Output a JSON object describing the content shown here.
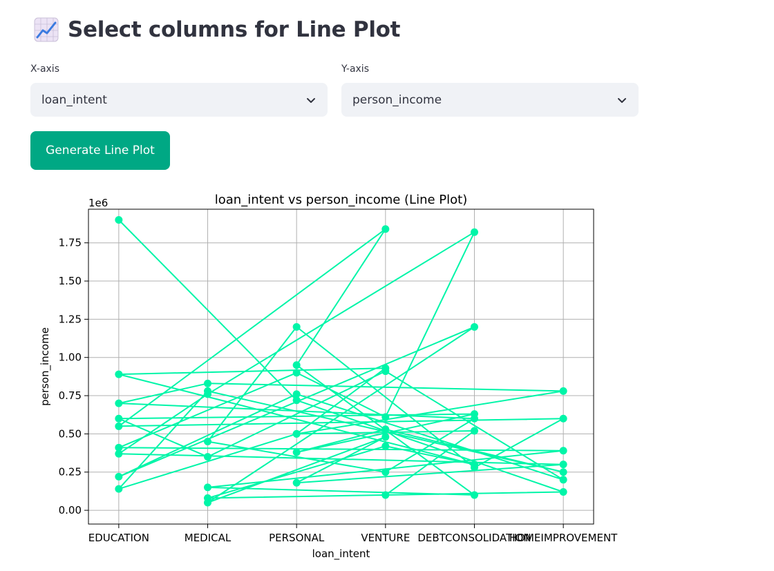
{
  "header": {
    "icon": "chart-increasing-icon",
    "title": "Select columns for Line Plot"
  },
  "x_select": {
    "label": "X-axis",
    "value": "loan_intent",
    "icon": "chevron-down-icon"
  },
  "y_select": {
    "label": "Y-axis",
    "value": "person_income",
    "icon": "chevron-down-icon"
  },
  "generate_button": {
    "label": "Generate Line Plot"
  },
  "colors": {
    "accent": "#00a884",
    "line": "#00f5a8",
    "select_bg": "#f0f2f6"
  },
  "chart_data": {
    "type": "line",
    "title": "loan_intent vs person_income (Line Plot)",
    "xlabel": "loan_intent",
    "ylabel": "person_income",
    "y_scale_label": "1e6",
    "categories": [
      "EDUCATION",
      "MEDICAL",
      "PERSONAL",
      "VENTURE",
      "DEBTCONSOLIDATION",
      "HOMEIMPROVEMENT"
    ],
    "y_ticks": [
      0.0,
      0.25,
      0.5,
      0.75,
      1.0,
      1.25,
      1.5,
      1.75
    ],
    "y_tick_labels": [
      "0.00",
      "0.25",
      "0.50",
      "0.75",
      "1.00",
      "1.25",
      "1.50",
      "1.75"
    ],
    "ylim": [
      -0.09,
      1.97
    ],
    "grid": true,
    "series": [
      {
        "x": [
          "EDUCATION",
          "PERSONAL",
          "HOMEIMPROVEMENT",
          "MEDICAL",
          "VENTURE",
          "DEBTCONSOLIDATION",
          "EDUCATION",
          "VENTURE",
          "PERSONAL",
          "HOMEIMPROVEMENT",
          "MEDICAL",
          "EDUCATION",
          "DEBTCONSOLIDATION",
          "VENTURE",
          "MEDICAL",
          "PERSONAL",
          "DEBTCONSOLIDATION",
          "HOMEIMPROVEMENT",
          "EDUCATION",
          "VENTURE",
          "PERSONAL",
          "DEBTCONSOLIDATION",
          "MEDICAL",
          "HOMEIMPROVEMENT",
          "EDUCATION",
          "PERSONAL",
          "VENTURE",
          "DEBTCONSOLIDATION",
          "MEDICAL",
          "EDUCATION",
          "HOMEIMPROVEMENT",
          "PERSONAL",
          "VENTURE",
          "MEDICAL",
          "DEBTCONSOLIDATION",
          "EDUCATION",
          "PERSONAL",
          "HOMEIMPROVEMENT",
          "VENTURE",
          "MEDICAL",
          "EDUCATION",
          "DEBTCONSOLIDATION",
          "PERSONAL",
          "VENTURE",
          "HOMEIMPROVEMENT",
          "MEDICAL",
          "EDUCATION",
          "PERSONAL",
          "DEBTCONSOLIDATION",
          "VENTURE"
        ],
        "values": [
          1.9,
          0.72,
          0.12,
          0.08,
          0.42,
          0.3,
          0.89,
          0.93,
          0.5,
          0.78,
          0.83,
          0.7,
          0.6,
          0.25,
          0.45,
          1.2,
          0.28,
          0.6,
          0.55,
          1.84,
          0.95,
          0.1,
          0.15,
          0.39,
          0.41,
          0.9,
          0.61,
          1.82,
          0.76,
          0.37,
          0.3,
          0.18,
          0.48,
          0.05,
          1.2,
          0.22,
          0.76,
          0.2,
          0.91,
          0.35,
          0.6,
          0.63,
          0.38,
          0.53,
          0.25,
          0.78,
          0.14,
          0.5,
          0.52,
          0.1
        ]
      }
    ]
  }
}
